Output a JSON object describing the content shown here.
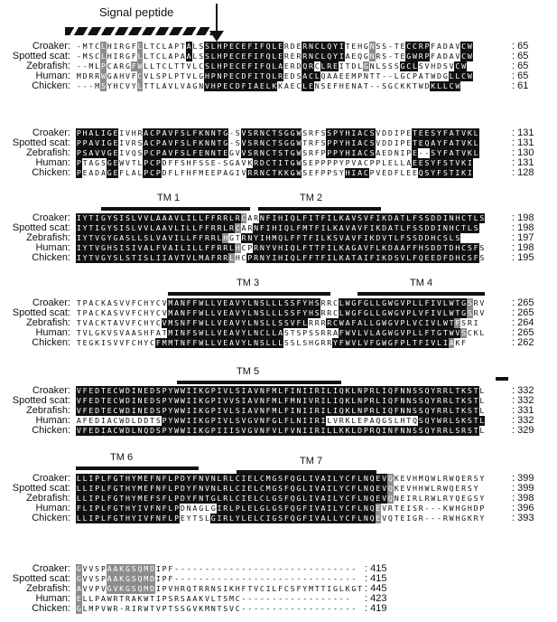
{
  "signal_label": "Signal peptide",
  "species": [
    "Croaker:",
    "Spotted scat:",
    "Zebrafish:",
    "Human:",
    "Chicken:"
  ],
  "blocks": [
    {
      "rows": [
        {
          "seq": "-MTCLHIRGFLLTCLAPTALSSLHPECEFIFQLERDERNCLQYITEHGNSS-TECCRPFADAVCW",
          "num": ": 65",
          "shade": "NNNNGNNNNNGNNNNNNNBNNBBBBBBBBBBBBBNNNBBBBBBBNNNNGNNNNNBBBBNNNNNBBBBB"
        },
        {
          "seq": "-MSCLHIRGFLLTCLAPAALSSLHPECEFIFQLERERRNCLQYIAEQGNRS-TEGWRPFADAVCW",
          "num": ": 65",
          "shade": "NNNNGNNNNNGNNNNNNNBNNBBBBBBBBBBBBBNNNBBBBBBBNNNNGNNNNNBBBBNNNNNBBBBB"
        },
        {
          "seq": "--MLPCARGFWLLTCLTTVLCSLHPECEFIFQLAERDQRCLREITDLGNLSSSGCLSVHDSVCW",
          "num": ": 65",
          "shade": "NNNNGNNNNGGNNNNNNNNNNBBBBBBBBBBBBBNNNBBNBBBNNNNGNNNNNBBBNNNNNNBBBBB"
        },
        {
          "seq": "MDRRWGAHVFCVLSPLPTVLGHPNPECDFITQLREDSACLQAAEEMPNTT--LGCPATWDGLLCW",
          "num": ": 65",
          "shade": "NNNNGNNNNNGNNNNNNNNNNBBBBBBBBBBBBBNNNBBBNNNNNNNNNNNNNNNNNNNNNBBBBB"
        },
        {
          "seq": "---MSYHCVYLTTLAVLVAGNVHPECDFIAELKKAECLENSEFHENAT--SGCKKTWDKLLCW",
          "num": ": 61",
          "shade": "NNNNGNNNNNGNNNNNNNNNNBBBBBBBBBBBBNNNNBBNNNNNNNNNNNNNNNNNNNBBBBBB"
        }
      ]
    },
    {
      "rows": [
        {
          "seq": "PHALIGEIVHRACPAVFSLFKNNTG-SVSRNCTSGGWSRFSSPYHIACSVDDIPETEESYFATVKL",
          "num": ": 131",
          "shade": "BBBBBBBNNNNBBBBBBBBBBBBBBNNBBBBBBBBBBNNNNBBBBBBBBNNNNNNBBBBBBBBBBB"
        },
        {
          "seq": "PPAVIGEIVRSACPAVFSLFKNNTG-SVSRNCTSGGWTRFSPPYHIACSVDDIPETEQAYFATVKL",
          "num": ": 131",
          "shade": "BBBBBBBNNNNBBBBBBBBBBBBBBNNBBBBBBBBBBNNNNBBBBBBBBNNNNNNBBBBBBBBBBB"
        },
        {
          "seq": "PSAVVGEIVQSPCPAVFSLFENNTEGVVSRNCTSTGWSRFPPPYHIACSAEDNIPE--SYFATVKL",
          "num": ": 130",
          "shade": "BBBBBBBNNNNBBBBBBBBBBBBBBNNBBBBBBBBBBNNNNBBBBBBBBNNNNNNBBBBBBBBBBB"
        },
        {
          "seq": "PTAGSGEWVTLPCPDFFSHFSSE-SGAVKRDCTITGWSEPPPPYPVACPPLELLAEESYFSTVKI",
          "num": ": 131",
          "shade": "BNNNNBBNNNNBBBNNNNNNNNNNNNNNNBBBBBBBBNNNNNNNNNNNNNNNNNNBBBBBBBBBBG"
        },
        {
          "seq": "PEADAGEFLALPCPDFLFHFMEEPAGIVRRNCTKKGWSEFPPSYHIACPVEDFLEEQSYFSTIKI",
          "num": ": 128",
          "shade": "BNNNNBBNNNNBBBNNNNNNNNNNNNNNBBBBBBBBBNNNNNNNBBBBNNNNNNNNBBBBBBBBBG"
        }
      ]
    },
    {
      "tms": [
        {
          "label": "TM 1"
        },
        {
          "label": "TM 2"
        }
      ],
      "rows": [
        {
          "seq": "IYTIGYSISLVVLAAAVLILLFFRRLRCARNFIHIQLFITFILKAVSVFIKDATLFSSDDINHCTLS",
          "num": ": 198",
          "shade": "BBBBBBBBBBBBBBBBBBBBBBBBBBBGNNBBBBBBBBBBBBBBBBBBBBBBBBBBBBBBBBBBBBB"
        },
        {
          "seq": "IYTIGYSISLVVLAAVLILLFFRRLRCARNFIHIQLFMTFILKAVAVFIKDATLFSSDDINHCTLS",
          "num": ": 198",
          "shade": "BBBBBBBBBBBBBBBBBBBBBBBBBBGNNBBBBBBBBBBBBBBBBBBBBBBBBBBBBBBBBBBBBB"
        },
        {
          "seq": "IYTVGYGASLLSLVAVILLFFRRLHGTRNYIHMQLFFTFILKSVAVFIKDVTLFSSDDHCSLS",
          "num": ": 197",
          "shade": "BBBBBBBBBBBBBBBBBBBBBBBBGNNBBBBBBBBBBBBBBBBBBBBBBBBBBBBBBBBBBBB"
        },
        {
          "seq": "IYTVGHSISIVALFVAILILLFFRRLHCPRNYVHIQLFTTFILKAGAVFLKDAAFFHSDDTDHCSFS",
          "num": ": 198",
          "shade": "BBBBBBBBBBBBBBBBBBBBBBBBBBGNNBBBBBBBBBBBBBBBBBBBBBBBBBBBBBBBBBBBBB"
        },
        {
          "seq": "IYTVGYSLSTISLIIAVTVLMAFRRLHCPRNYIHIQLFFTFILKATAIFIKDSVLFQEEDFDHCSFS",
          "num": ": 195",
          "shade": "BBBBBBBBBBBBBBBBBBBBBBBBBGNNBBBBBBBBBBBBBBBBBBBBBBBBBBBBBBBBBBBBBB"
        }
      ]
    },
    {
      "tms": [
        {
          "label": "TM 3"
        },
        {
          "label": "TM 4"
        }
      ],
      "rows": [
        {
          "seq": "TPACKASVVFCHYCVMANFFWLLVEAVYLNSLLLSSFYHSRRCLWGFGLLGWGVPLLFIVLWTGSRV",
          "num": ": 265",
          "shade": "NNNNNNNNNNNNNNNBBBBBBBBBBBBBBBBBBBBBBBBBNNNBBBBBBBBBBBBBBBBBBBBBGNN"
        },
        {
          "seq": "TPACKASVVFCHYCVMANFFWLLVEAVYLNSLLLSSFYHSRRCLWGFGLLGWGVPLVFIVLWTGSRV",
          "num": ": 265",
          "shade": "NNNNNNNNNNNNNNNBBBBBBBBBBBBBBBBBBBBBBBBBNNNBBBBBBBBBBBBBBBBBBBBBGNN"
        },
        {
          "seq": "TVACKTAVVFCHYCVMSNFFWLLVEAVYLNSLLSSVFLRRRRCWAFALLGWGVPLVCIVLWTFSRI",
          "num": ": 264",
          "shade": "NNNNNNNNNNNNNNBBBBBBBBBBBBBBBBBBBBBBBBNNNBBBBBBBBBBBBBBBBBBBBBGNNN"
        },
        {
          "seq": "TVLGKVSVAASHFATMINFSWLLVEAVYLNCLLASTSPSSRRAFWVLVLAGWGVPLLFTGTWVSCKL",
          "num": ": 265",
          "shade": "NNNNNNNNNNNNNNNBBBBBBBBBBBBBBBBBBBNNNNNNNNNBBBBBBBBBBBBBBBBBBBBGNNN"
        },
        {
          "seq": "TEGKISVVFCHYCFMMTNFFWLLVEAVYLNSLLLSSLSHGRRYFWVLVFGWGFPLTFIVLIAKF",
          "num": ": 262",
          "shade": "NNNNNNNNNNNNNBBBBBBBBBBBBBBBBBBBBBNNNNNNNNBBBBBBBBBBBBBBBBBBBGNNN"
        }
      ]
    },
    {
      "tms": [
        {
          "label": "TM 5"
        },
        {
          "label": ""
        }
      ],
      "rows": [
        {
          "seq": "VFEDTECWDINEDSPYWWIIKGPIVLSIAVNFMLFINIIRILIQKLNPRLIQFNNSSQYRRLTKSTL",
          "num": ": 332",
          "shade": "BBBBBBBBBBBBBBBBBBBBBBBBBBBBBBBBBBBBBBBBBBBBBBBBBBBBBBBBBBBBBBBBBB"
        },
        {
          "seq": "VFEDTECWDINEDSPYWWIIKGPIVVSIAVNFMLFMNIVRILIQKLNPRLIQFNNSSQYRRLTKSTL",
          "num": ": 332",
          "shade": "BBBBBBBBBBBBBBBBBBBBBBBBBBBBBBBBBBBBBBBBBBBBBBBBBBBBBBBBBBBBBBBBBB"
        },
        {
          "seq": "VFEDTECWDINEDSPYWWIIKGPIVLSIAVNFMLFINIIRILIQKLNPRLIQFNNSSQYRRLTKSTL",
          "num": ": 331",
          "shade": "BBBBBBBBBBBBBBBBBBBBBBBBBBBBBBBBBBBBBBBBBBBBBBBBBBBBBBBBBBBBBBBBBB"
        },
        {
          "seq": "AFEDIACWDLDDTSPYWWIIKGPIVLSVGVNFGLFLNIIRILVRKLEPAQGSLHTQSQYWRLSKSTL",
          "num": ": 332",
          "shade": "NNNNNNNNNNNNNNBBBBBBBBBBBBBBBBBBBBBBBBBBBNNNNNNNNNNNNNNNBBBBBBBBBBB"
        },
        {
          "seq": "VFEDIACWDLNQDSPYWWIIKGPIIISVGVNFVLFVNIIRILLKKLDPRQINFNNSSQYRRLSRSTL",
          "num": ": 329",
          "shade": "BBBBBBBBBBBBBBBBBBBBBBBBBBBBBBBBBBBBBBBBBBBBBBBBBBBBBBBBBBBBBBBBBB"
        }
      ]
    },
    {
      "tms": [
        {
          "label": "TM 6"
        },
        {
          "label": "TM 7"
        }
      ],
      "rows": [
        {
          "seq": "LLIPLFGTHYMEFNFLPDYFNVNLRLCIELCMGSFQGLIVAILYCFLNQEVQKEVHMQWLRWQERSY",
          "num": ": 399",
          "shade": "BBBBBBBBBBBBBBBBBBBBBBBBBBBBBBBBBBBBBBBBBBBBBBBBBBBGNNNNNNNNNNNNNNNN"
        },
        {
          "seq": "LLIPLFGTHYMEFNFLPDYFNVNLRLCIELCMGSFQGLIVAILYCFLNQEVQKEVHHWLRWQERSY",
          "num": ": 399",
          "shade": "BBBBBBBBBBBBBBBBBBBBBBBBBBBBBBBBBBBBBBBBBBBBBBBBBBBGNNNNNNNNNNNNNN"
        },
        {
          "seq": "LLIPLFGTHYMEFSFLPDYFNTGLRLCIELCLGSFQGLIVAILYCFLNQEVQNEIRLRWLRYQEGSY",
          "num": ": 398",
          "shade": "BBBBBBBBBBBBBBBBBBBBBBBBBBBBBBBBBBBBBBBBBBBBBBBBBBBGNNNNNNNNNNNNNNNN"
        },
        {
          "seq": "FLIPLFGTHYIVFNFLPDNAGLGIRLPLELGLGSFQGFIVAILYCFLNQEVRTEISR---KWHGHDP",
          "num": ": 396",
          "shade": "BBBBBBBBBBBBBBBBBNNNNNNBBBBBBBBBBBBBBBBBBBBBBBBBBGNNNNNNNNNNNNNNNNN"
        },
        {
          "seq": "LLIPLFGTHYIVFNFLPEYTSLGIRLYLELCIGSFQGFIVALLYCFLNQEVQTEIGR---RWHGKRY",
          "num": ": 393",
          "shade": "BBBBBBBBBBBBBBBBBNNNNNBBBBBBBBBBBBBBBBBBBBBBBBBBBGNNNNNNNNNNNNNNNNN"
        }
      ]
    },
    {
      "rows": [
        {
          "seq": "GVVSPAAKGSQMDIPF------------------------------",
          "num": ": 415",
          "shade": "GNNNNGGGGGGGGNNNNNNNNNNNNNNNNNNNNNNNNNNNNNNNNN"
        },
        {
          "seq": "GVVSPAAKGSQMDIPF------------------------------",
          "num": ": 415",
          "shade": "GNNNNGGGGGGGGNNNNNNNNNNNNNNNNNNNNNNNNNNNNNNNNN"
        },
        {
          "seq": "AVVPVGVKGSQMDIPVHRQTRRNSIKHFTVCILFCSFYMTTIGLKGT",
          "num": ": 445",
          "shade": "GNNNNGGGGGGGGNNNNNNNNNNNNNNNNNNNNNNNNNNNNNNNNNN"
        },
        {
          "seq": "ELLPAWRTRAKWTIPSRSAAKVLTSMC------------------",
          "num": ": 423",
          "shade": "GNNNNNNNNNNNNNNNNNNNNNNNNNNNNNNNNNNNNNNNNNNNN"
        },
        {
          "seq": "GLMPVWR-RIRWTVPTSSGVKMNTSVC-------------------",
          "num": ": 419",
          "shade": "GNNNNNNNNNNNNNNNNNNNNNNNNNNNNNNNNNNNNNNNNNNNNN"
        }
      ]
    }
  ]
}
